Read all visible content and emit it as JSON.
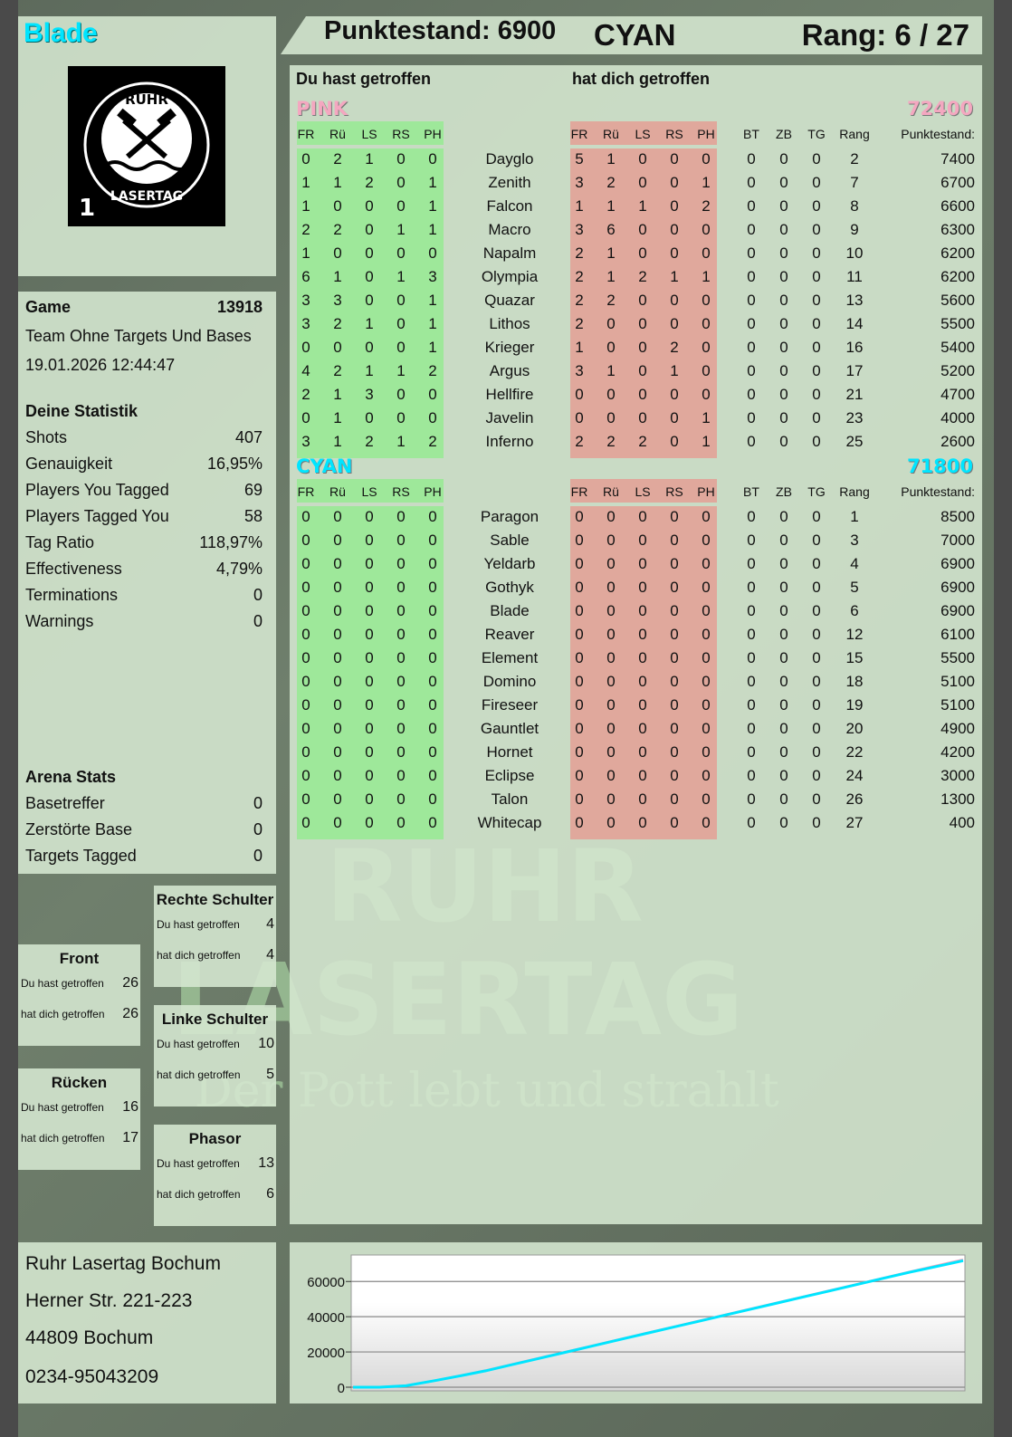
{
  "player": {
    "name": "Blade",
    "name_color": "#00e5ff"
  },
  "header": {
    "score_label": "Punktestand: 6900",
    "team": "CYAN",
    "rank_label": "Rang: 6 / 27"
  },
  "logo": {
    "text_top": "RUHR",
    "text_bottom": "LASERTAG",
    "number": "1",
    "icon": "crossed-hammers-icon"
  },
  "game": {
    "label": "Game",
    "id": "13918",
    "mode": "Team Ohne Targets Und Bases",
    "datetime": "19.01.2026 12:44:47"
  },
  "stats": {
    "title": "Deine Statistik",
    "rows": [
      {
        "label": "Shots",
        "value": "407"
      },
      {
        "label": "Genauigkeit",
        "value": "16,95%"
      },
      {
        "label": "Players You Tagged",
        "value": "69"
      },
      {
        "label": "Players Tagged You",
        "value": "58"
      },
      {
        "label": "Tag Ratio",
        "value": "118,97%"
      },
      {
        "label": "Effectiveness",
        "value": "4,79%"
      },
      {
        "label": "Terminations",
        "value": "0"
      },
      {
        "label": "Warnings",
        "value": "0"
      }
    ]
  },
  "arena": {
    "title": "Arena Stats",
    "rows": [
      {
        "label": "Basetreffer",
        "value": "0"
      },
      {
        "label": "Zerstörte Base",
        "value": "0"
      },
      {
        "label": "Targets Tagged",
        "value": "0"
      }
    ]
  },
  "body_parts": [
    {
      "title": "Rechte Schulter",
      "hit_label": "Du hast getroffen",
      "hit": "4",
      "got_label": "hat dich getroffen",
      "got": "4"
    },
    {
      "title": "Front",
      "hit_label": "Du hast getroffen",
      "hit": "26",
      "got_label": "hat dich getroffen",
      "got": "26"
    },
    {
      "title": "Linke Schulter",
      "hit_label": "Du hast getroffen",
      "hit": "10",
      "got_label": "hat dich getroffen",
      "got": "5"
    },
    {
      "title": "Rücken",
      "hit_label": "Du hast getroffen",
      "hit": "16",
      "got_label": "hat dich getroffen",
      "got": "17"
    },
    {
      "title": "Phasor",
      "hit_label": "Du hast getroffen",
      "hit": "13",
      "got_label": "hat dich getroffen",
      "got": "6"
    }
  ],
  "address": [
    "Ruhr Lasertag Bochum",
    "Herner Str. 221-223",
    "44809 Bochum",
    "0234-95043209"
  ],
  "table": {
    "you_hit": "Du hast getroffen",
    "hit_you": "hat dich getroffen",
    "columns_hit": [
      "FR",
      "Rü",
      "LS",
      "RS",
      "PH"
    ],
    "columns_got": [
      "FR",
      "Rü",
      "LS",
      "RS",
      "PH"
    ],
    "columns_extra": [
      "BT",
      "ZB",
      "TG",
      "Rang"
    ],
    "score_col": "Punktestand:",
    "colors": {
      "hit_bg": "#9ee89a",
      "got_bg": "#e0a89c",
      "pink": "#f4a7c0",
      "cyan": "#00e5ff"
    }
  },
  "teams": [
    {
      "name": "PINK",
      "score": "72400",
      "color": "#f4a7c0",
      "players": [
        [
          "Dayglo",
          [
            0,
            2,
            1,
            0,
            0
          ],
          [
            5,
            1,
            0,
            0,
            0
          ],
          [
            0,
            0,
            0
          ],
          "2",
          "7400"
        ],
        [
          "Zenith",
          [
            1,
            1,
            2,
            0,
            1
          ],
          [
            3,
            2,
            0,
            0,
            1
          ],
          [
            0,
            0,
            0
          ],
          "7",
          "6700"
        ],
        [
          "Falcon",
          [
            1,
            0,
            0,
            0,
            1
          ],
          [
            1,
            1,
            1,
            0,
            2
          ],
          [
            0,
            0,
            0
          ],
          "8",
          "6600"
        ],
        [
          "Macro",
          [
            2,
            2,
            0,
            1,
            1
          ],
          [
            3,
            6,
            0,
            0,
            0
          ],
          [
            0,
            0,
            0
          ],
          "9",
          "6300"
        ],
        [
          "Napalm",
          [
            1,
            0,
            0,
            0,
            0
          ],
          [
            2,
            1,
            0,
            0,
            0
          ],
          [
            0,
            0,
            0
          ],
          "10",
          "6200"
        ],
        [
          "Olympia",
          [
            6,
            1,
            0,
            1,
            3
          ],
          [
            2,
            1,
            2,
            1,
            1
          ],
          [
            0,
            0,
            0
          ],
          "11",
          "6200"
        ],
        [
          "Quazar",
          [
            3,
            3,
            0,
            0,
            1
          ],
          [
            2,
            2,
            0,
            0,
            0
          ],
          [
            0,
            0,
            0
          ],
          "13",
          "5600"
        ],
        [
          "Lithos",
          [
            3,
            2,
            1,
            0,
            1
          ],
          [
            2,
            0,
            0,
            0,
            0
          ],
          [
            0,
            0,
            0
          ],
          "14",
          "5500"
        ],
        [
          "Krieger",
          [
            0,
            0,
            0,
            0,
            1
          ],
          [
            1,
            0,
            0,
            2,
            0
          ],
          [
            0,
            0,
            0
          ],
          "16",
          "5400"
        ],
        [
          "Argus",
          [
            4,
            2,
            1,
            1,
            2
          ],
          [
            3,
            1,
            0,
            1,
            0
          ],
          [
            0,
            0,
            0
          ],
          "17",
          "5200"
        ],
        [
          "Hellfire",
          [
            2,
            1,
            3,
            0,
            0
          ],
          [
            0,
            0,
            0,
            0,
            0
          ],
          [
            0,
            0,
            0
          ],
          "21",
          "4700"
        ],
        [
          "Javelin",
          [
            0,
            1,
            0,
            0,
            0
          ],
          [
            0,
            0,
            0,
            0,
            1
          ],
          [
            0,
            0,
            0
          ],
          "23",
          "4000"
        ],
        [
          "Inferno",
          [
            3,
            1,
            2,
            1,
            2
          ],
          [
            2,
            2,
            2,
            0,
            1
          ],
          [
            0,
            0,
            0
          ],
          "25",
          "2600"
        ]
      ]
    },
    {
      "name": "CYAN",
      "score": "71800",
      "color": "#00e5ff",
      "players": [
        [
          "Paragon",
          [
            0,
            0,
            0,
            0,
            0
          ],
          [
            0,
            0,
            0,
            0,
            0
          ],
          [
            0,
            0,
            0
          ],
          "1",
          "8500"
        ],
        [
          "Sable",
          [
            0,
            0,
            0,
            0,
            0
          ],
          [
            0,
            0,
            0,
            0,
            0
          ],
          [
            0,
            0,
            0
          ],
          "3",
          "7000"
        ],
        [
          "Yeldarb",
          [
            0,
            0,
            0,
            0,
            0
          ],
          [
            0,
            0,
            0,
            0,
            0
          ],
          [
            0,
            0,
            0
          ],
          "4",
          "6900"
        ],
        [
          "Gothyk",
          [
            0,
            0,
            0,
            0,
            0
          ],
          [
            0,
            0,
            0,
            0,
            0
          ],
          [
            0,
            0,
            0
          ],
          "5",
          "6900"
        ],
        [
          "Blade",
          [
            0,
            0,
            0,
            0,
            0
          ],
          [
            0,
            0,
            0,
            0,
            0
          ],
          [
            0,
            0,
            0
          ],
          "6",
          "6900"
        ],
        [
          "Reaver",
          [
            0,
            0,
            0,
            0,
            0
          ],
          [
            0,
            0,
            0,
            0,
            0
          ],
          [
            0,
            0,
            0
          ],
          "12",
          "6100"
        ],
        [
          "Element",
          [
            0,
            0,
            0,
            0,
            0
          ],
          [
            0,
            0,
            0,
            0,
            0
          ],
          [
            0,
            0,
            0
          ],
          "15",
          "5500"
        ],
        [
          "Domino",
          [
            0,
            0,
            0,
            0,
            0
          ],
          [
            0,
            0,
            0,
            0,
            0
          ],
          [
            0,
            0,
            0
          ],
          "18",
          "5100"
        ],
        [
          "Fireseer",
          [
            0,
            0,
            0,
            0,
            0
          ],
          [
            0,
            0,
            0,
            0,
            0
          ],
          [
            0,
            0,
            0
          ],
          "19",
          "5100"
        ],
        [
          "Gauntlet",
          [
            0,
            0,
            0,
            0,
            0
          ],
          [
            0,
            0,
            0,
            0,
            0
          ],
          [
            0,
            0,
            0
          ],
          "20",
          "4900"
        ],
        [
          "Hornet",
          [
            0,
            0,
            0,
            0,
            0
          ],
          [
            0,
            0,
            0,
            0,
            0
          ],
          [
            0,
            0,
            0
          ],
          "22",
          "4200"
        ],
        [
          "Eclipse",
          [
            0,
            0,
            0,
            0,
            0
          ],
          [
            0,
            0,
            0,
            0,
            0
          ],
          [
            0,
            0,
            0
          ],
          "24",
          "3000"
        ],
        [
          "Talon",
          [
            0,
            0,
            0,
            0,
            0
          ],
          [
            0,
            0,
            0,
            0,
            0
          ],
          [
            0,
            0,
            0
          ],
          "26",
          "1300"
        ],
        [
          "Whitecap",
          [
            0,
            0,
            0,
            0,
            0
          ],
          [
            0,
            0,
            0,
            0,
            0
          ],
          [
            0,
            0,
            0
          ],
          "27",
          "400"
        ]
      ]
    }
  ],
  "watermark": {
    "line1": "RUHR",
    "line2": "LASERTAG",
    "tagline": "Der Pott lebt und strahlt"
  },
  "chart_data": {
    "type": "line",
    "title": "",
    "xlabel": "",
    "ylabel": "",
    "ylim": [
      0,
      74000
    ],
    "yticks": [
      0,
      20000,
      40000,
      60000
    ],
    "grid": true,
    "series": [
      {
        "color": "#f4a7c0",
        "values": [
          0,
          0,
          1000,
          3500,
          6500,
          9500,
          13000,
          16500,
          20000,
          23500,
          27000,
          30500,
          34000,
          37500,
          41000,
          44500,
          48000,
          51500,
          55000,
          58500,
          62000,
          65500,
          69000,
          72400
        ]
      },
      {
        "color": "#00e5ff",
        "values": [
          0,
          0,
          800,
          3500,
          6300,
          9300,
          12800,
          16300,
          19800,
          23300,
          26800,
          30300,
          33800,
          37300,
          40800,
          44300,
          47800,
          51300,
          54800,
          58300,
          61800,
          65300,
          68500,
          71800
        ]
      }
    ]
  }
}
